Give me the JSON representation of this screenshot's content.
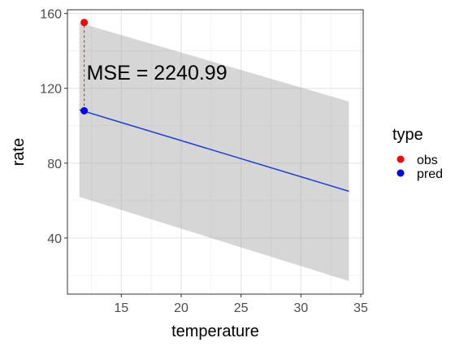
{
  "chart_data": {
    "type": "line",
    "xlabel": "temperature",
    "ylabel": "rate",
    "xlim": [
      10.5,
      35.2
    ],
    "ylim": [
      10,
      162
    ],
    "x_ticks": [
      15,
      20,
      25,
      30,
      35
    ],
    "x_tick_labels": [
      "15",
      "20",
      "25",
      "30",
      "35"
    ],
    "y_ticks": [
      40,
      80,
      120,
      160
    ],
    "y_tick_labels": [
      "40",
      "80",
      "120",
      "160"
    ],
    "grid": true,
    "ribbon": {
      "x": [
        11.5,
        34
      ],
      "lower": [
        62,
        17
      ],
      "upper": [
        155,
        113
      ]
    },
    "prediction_line": {
      "x": [
        11.5,
        34
      ],
      "y": [
        108.5,
        65
      ],
      "color": "#1c3fe0"
    },
    "points": [
      {
        "type": "obs",
        "x": 11.9,
        "y": 155.2,
        "color": "#ff0000"
      },
      {
        "type": "pred",
        "x": 11.9,
        "y": 108,
        "color": "#0000ff"
      }
    ],
    "residual_segment": {
      "x": 11.9,
      "y_from": 108,
      "y_to": 155.2,
      "color": "#ff0000"
    },
    "annotation": {
      "text": "MSE = 2240.99",
      "x": 12.1,
      "y": 128.5
    },
    "legend": {
      "title": "type",
      "position": "right",
      "items": [
        {
          "label": "obs",
          "color": "#ff0000"
        },
        {
          "label": "pred",
          "color": "#0000ff"
        }
      ]
    }
  }
}
